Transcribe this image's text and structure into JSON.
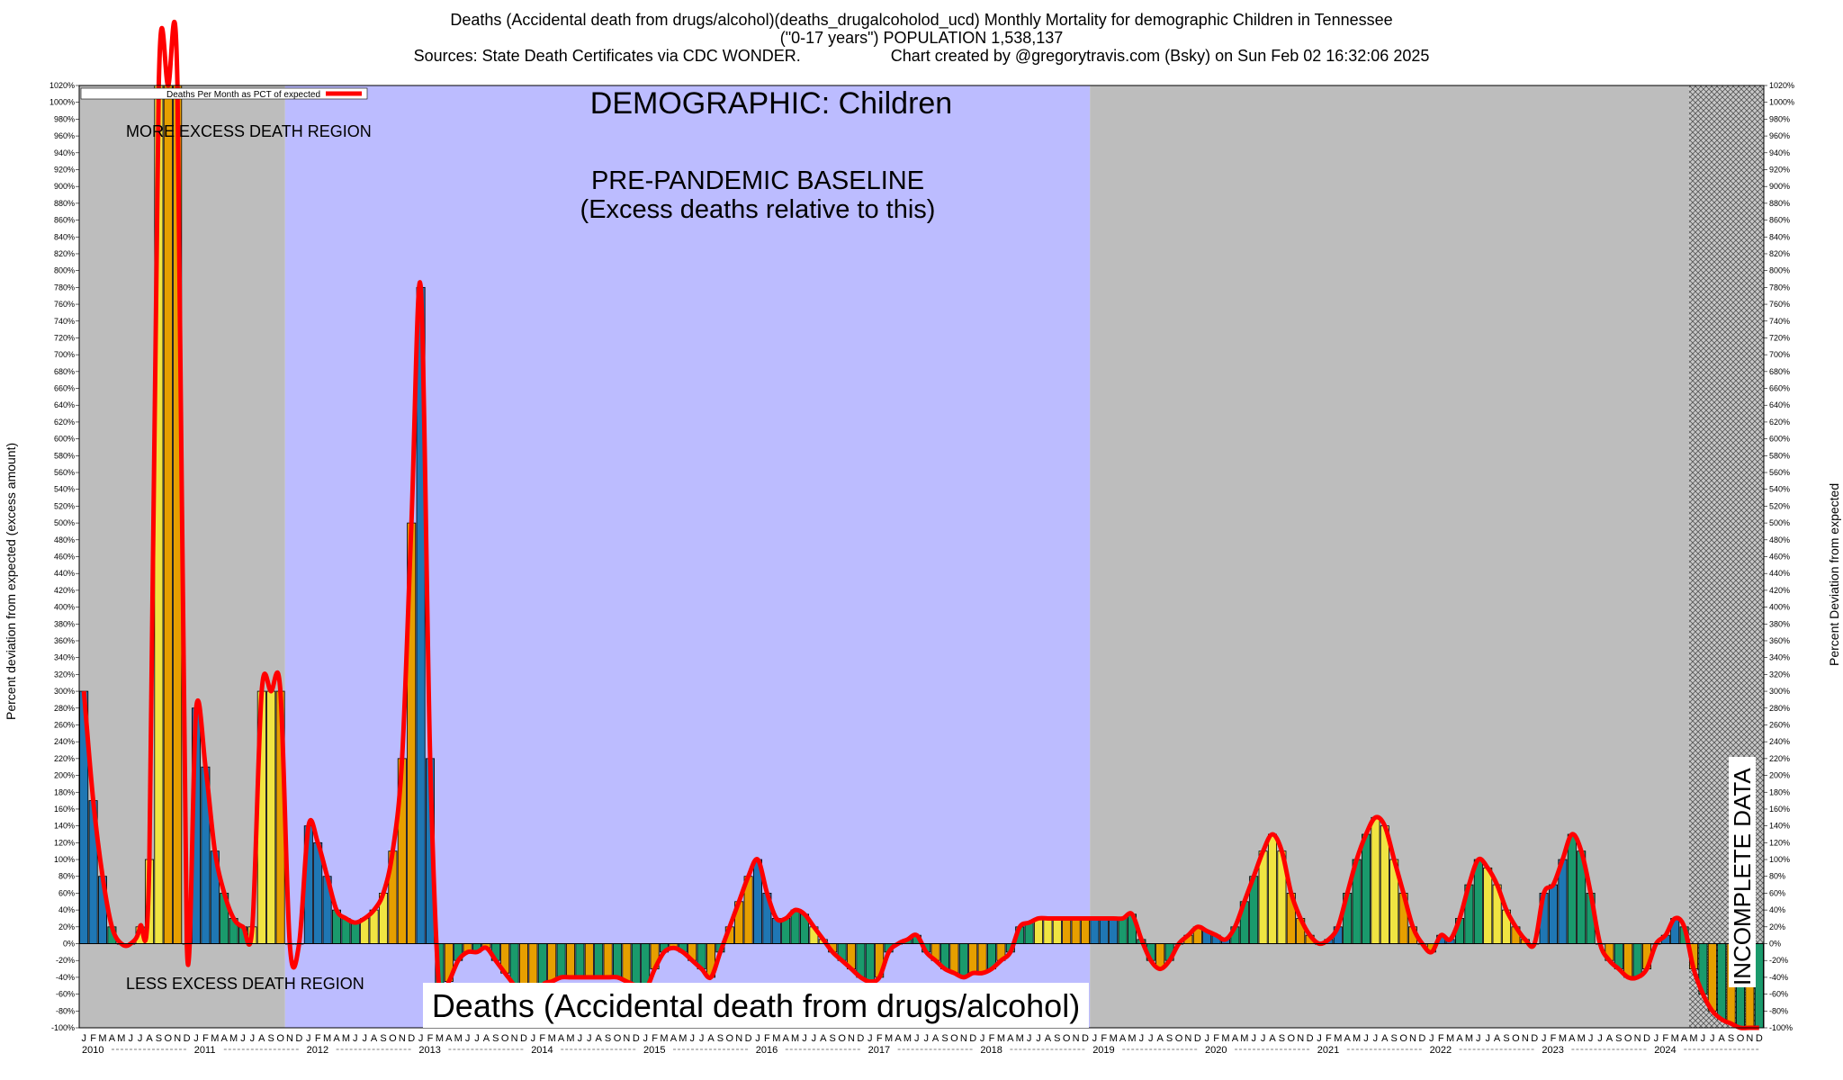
{
  "header": {
    "line1": "Deaths (Accidental death from drugs/alcohol)(deaths_drugalcoholod_ucd) Monthly Mortality for demographic Children in Tennessee",
    "line2": "(\"0-17 years\") POPULATION 1,538,137",
    "sources": "Sources: State Death Certificates via CDC WONDER.",
    "created": "Chart created by @gregorytravis.com (Bsky) on Sun Feb 02 16:32:06 2025"
  },
  "chart_data": {
    "type": "bar",
    "title": "DEMOGRAPHIC: Children",
    "baseline_label_1": "PRE-PANDEMIC BASELINE",
    "baseline_label_2": "(Excess deaths relative to this)",
    "more_excess_label": "MORE EXCESS DEATH REGION",
    "less_excess_label": "LESS EXCESS DEATH REGION",
    "bottom_label": "Deaths (Accidental death from drugs/alcohol)",
    "incomplete_label": "INCOMPLETE DATA",
    "ylabel_left": "Percent deviation from expected (excess amount)",
    "ylabel_right": "Percent Deviation from expected",
    "legend": "Deaths Per Month as PCT of expected",
    "legend_position": "top-left",
    "ylim": [
      -100,
      1020
    ],
    "ytick_step": 20,
    "ytick_extra": 1020,
    "years": [
      "2010",
      "2011",
      "2012",
      "2013",
      "2014",
      "2015",
      "2016",
      "2017",
      "2018",
      "2019",
      "2020",
      "2021",
      "2022",
      "2023",
      "2024"
    ],
    "month_letters": [
      "J",
      "F",
      "M",
      "A",
      "M",
      "J",
      "J",
      "A",
      "S",
      "O",
      "N",
      "D"
    ],
    "regions": [
      {
        "type": "gray",
        "from": 0,
        "to": 22
      },
      {
        "type": "baseline",
        "from": 22,
        "to": 108
      },
      {
        "type": "gray",
        "from": 108,
        "to": 172
      },
      {
        "type": "incomplete",
        "from": 172,
        "to": 180
      }
    ],
    "bar_colors": {
      "blue": "#1f77b4",
      "green": "#1a9a6c",
      "yellow": "#f0e442",
      "orange": "#e69f00"
    },
    "line_color": "#ff0000",
    "values": [
      300,
      170,
      80,
      20,
      0,
      0,
      20,
      100,
      1020,
      1020,
      1020,
      0,
      280,
      210,
      110,
      60,
      30,
      20,
      20,
      300,
      300,
      300,
      0,
      0,
      140,
      120,
      80,
      40,
      30,
      25,
      30,
      40,
      60,
      110,
      220,
      500,
      780,
      220,
      -60,
      -45,
      -20,
      -10,
      -10,
      -5,
      -20,
      -35,
      -50,
      -70,
      -80,
      -50,
      -45,
      -40,
      -40,
      -40,
      -40,
      -40,
      -40,
      -40,
      -45,
      -50,
      -55,
      -30,
      -10,
      -5,
      -10,
      -20,
      -30,
      -40,
      -10,
      20,
      50,
      80,
      100,
      60,
      30,
      30,
      40,
      35,
      20,
      5,
      -10,
      -20,
      -30,
      -40,
      -45,
      -40,
      -10,
      0,
      5,
      10,
      -10,
      -20,
      -30,
      -35,
      -40,
      -35,
      -35,
      -30,
      -20,
      -10,
      20,
      25,
      30,
      30,
      30,
      30,
      30,
      30,
      30,
      30,
      30,
      30,
      35,
      5,
      -20,
      -30,
      -20,
      0,
      10,
      20,
      15,
      10,
      5,
      20,
      50,
      80,
      110,
      130,
      110,
      60,
      30,
      10,
      0,
      5,
      20,
      60,
      100,
      130,
      150,
      140,
      100,
      60,
      20,
      0,
      -10,
      10,
      5,
      30,
      70,
      100,
      90,
      70,
      40,
      20,
      5,
      0,
      60,
      70,
      100,
      130,
      110,
      60,
      0,
      -20,
      -30,
      -40,
      -40,
      -30,
      0,
      10,
      30,
      20,
      -30,
      -60,
      -80,
      -90,
      -95,
      -100,
      -100,
      -100
    ]
  }
}
